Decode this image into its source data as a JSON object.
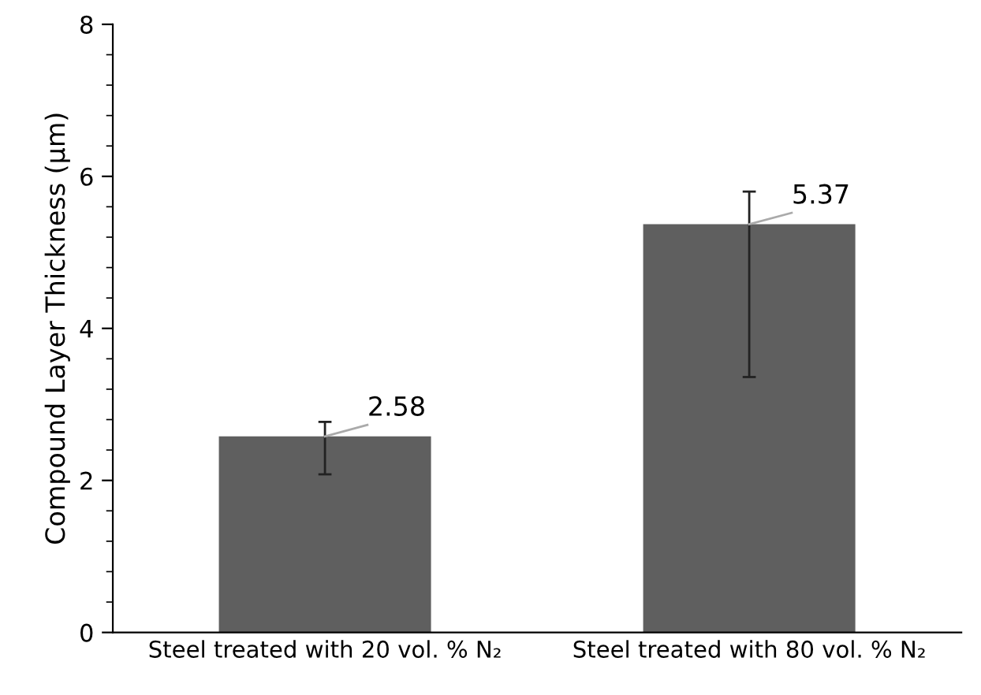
{
  "chart_data": {
    "type": "bar",
    "ylabel": "Compound Layer Thickness (μm)",
    "categories": [
      "Steel treated with 20 vol. % N₂",
      "Steel treated with 80 vol. % N₂"
    ],
    "values": [
      2.58,
      5.37
    ],
    "color": "#5f5f5f",
    "errors": [
      [
        2.08,
        2.77
      ],
      [
        3.36,
        5.8
      ]
    ],
    "ylim": [
      0,
      8
    ],
    "yticks": [
      0,
      2,
      4,
      6,
      8
    ],
    "grid": false,
    "data_labels": true
  }
}
